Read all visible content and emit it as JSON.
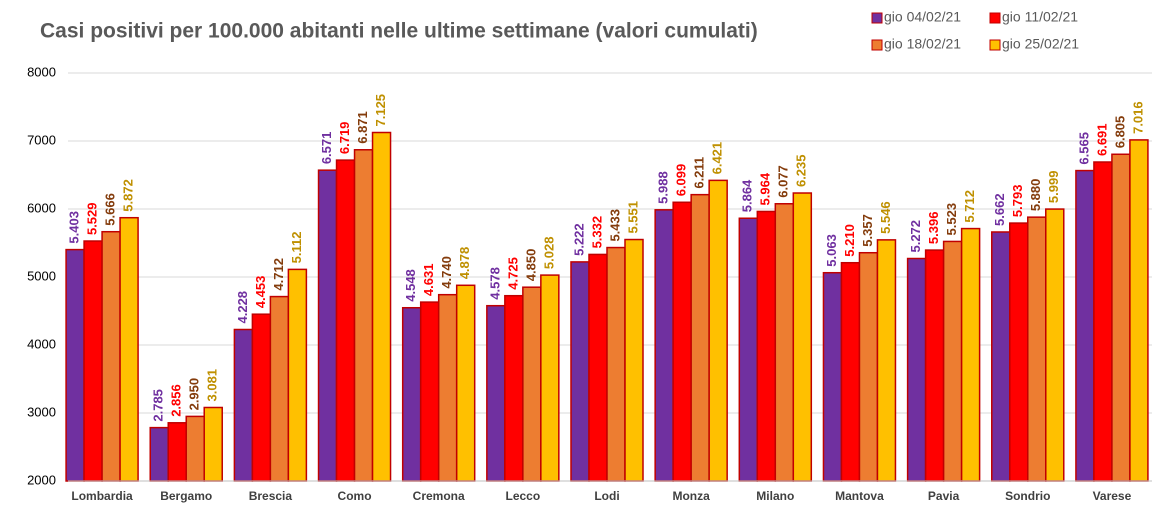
{
  "chart_data": {
    "type": "bar",
    "title": "Casi positivi per 100.000 abitanti nelle ultime settimane (valori cumulati)",
    "categories": [
      "Lombardia",
      "Bergamo",
      "Brescia",
      "Como",
      "Cremona",
      "Lecco",
      "Lodi",
      "Monza",
      "Milano",
      "Mantova",
      "Pavia",
      "Sondrio",
      "Varese"
    ],
    "series": [
      {
        "name": "gio 04/02/21",
        "color": "#7030a0",
        "label_color": "#7030a0",
        "values": [
          5403,
          2785,
          4228,
          6571,
          4548,
          4578,
          5222,
          5988,
          5864,
          5063,
          5272,
          5662,
          6565
        ],
        "value_labels": [
          "5.403",
          "2.785",
          "4.228",
          "6.571",
          "4.548",
          "4.578",
          "5.222",
          "5.988",
          "5.864",
          "5.063",
          "5.272",
          "5.662",
          "6.565"
        ]
      },
      {
        "name": "gio 11/02/21",
        "color": "#ff0000",
        "label_color": "#ff0000",
        "values": [
          5529,
          2856,
          4453,
          6719,
          4631,
          4725,
          5332,
          6099,
          5964,
          5210,
          5396,
          5793,
          6691
        ],
        "value_labels": [
          "5.529",
          "2.856",
          "4.453",
          "6.719",
          "4.631",
          "4.725",
          "5.332",
          "6.099",
          "5.964",
          "5.210",
          "5.396",
          "5.793",
          "6.691"
        ]
      },
      {
        "name": "gio 18/02/21",
        "color": "#ed7d31",
        "label_color": "#843c0c",
        "values": [
          5666,
          2950,
          4712,
          6871,
          4740,
          4850,
          5433,
          6211,
          6077,
          5357,
          5523,
          5880,
          6805
        ],
        "value_labels": [
          "5.666",
          "2.950",
          "4.712",
          "6.871",
          "4.740",
          "4.850",
          "5.433",
          "6.211",
          "6.077",
          "5.357",
          "5.523",
          "5.880",
          "6.805"
        ]
      },
      {
        "name": "gio 25/02/21",
        "color": "#ffc000",
        "label_color": "#bf9000",
        "values": [
          5872,
          3081,
          5112,
          7125,
          4878,
          5028,
          5551,
          6421,
          6235,
          5546,
          5712,
          5999,
          7016
        ],
        "value_labels": [
          "5.872",
          "3.081",
          "5.112",
          "7.125",
          "4.878",
          "5.028",
          "5.551",
          "6.421",
          "6.235",
          "5.546",
          "5.712",
          "5.999",
          "7.016"
        ]
      }
    ],
    "ylim": [
      2000,
      8000
    ],
    "yticks": [
      2000,
      3000,
      4000,
      5000,
      6000,
      7000,
      8000
    ],
    "grid": true
  }
}
